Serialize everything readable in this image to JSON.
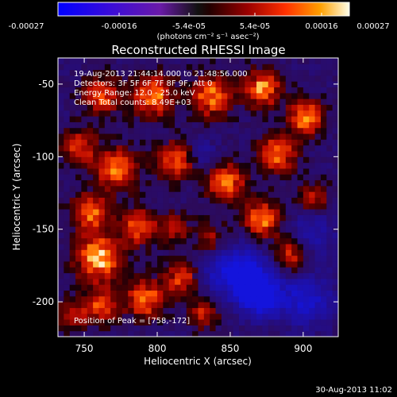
{
  "colorbar": {
    "ticks": [
      "-0.00027",
      "-0.00016",
      "-5.4e-05",
      "5.4e-05",
      "0.00016",
      "0.00027"
    ],
    "unit_label": "(photons cm⁻² s⁻¹ asec⁻²)",
    "range": [
      -0.00027,
      0.00027
    ]
  },
  "chart_data": {
    "type": "heatmap",
    "title": "Reconstructed RHESSI Image",
    "xlabel": "Heliocentric X (arcsec)",
    "ylabel": "Heliocentric Y (arcsec)",
    "xlim": [
      732,
      924
    ],
    "ylim": [
      -224,
      -32
    ],
    "x_ticks": [
      750,
      800,
      850,
      900
    ],
    "y_ticks": [
      -50,
      -100,
      -150,
      -200
    ],
    "annotations": {
      "time_range": "19-Aug-2013 21:44:14.000 to 21:48:56.000",
      "detectors": "Detectors: 3F 5F 6F 7F 8F 9F, Att 0",
      "energy": "Energy Range: 12.0 - 25.0 keV",
      "clean": "Clean     Total counts: 8.49E+03",
      "peak": "Position of Peak = [758,-172]"
    },
    "peak_position": [
      758,
      -172
    ],
    "total_counts": 8490,
    "energy_range_kev": [
      12.0,
      25.0
    ]
  },
  "footer": {
    "timestamp": "30-Aug-2013 11:02"
  }
}
